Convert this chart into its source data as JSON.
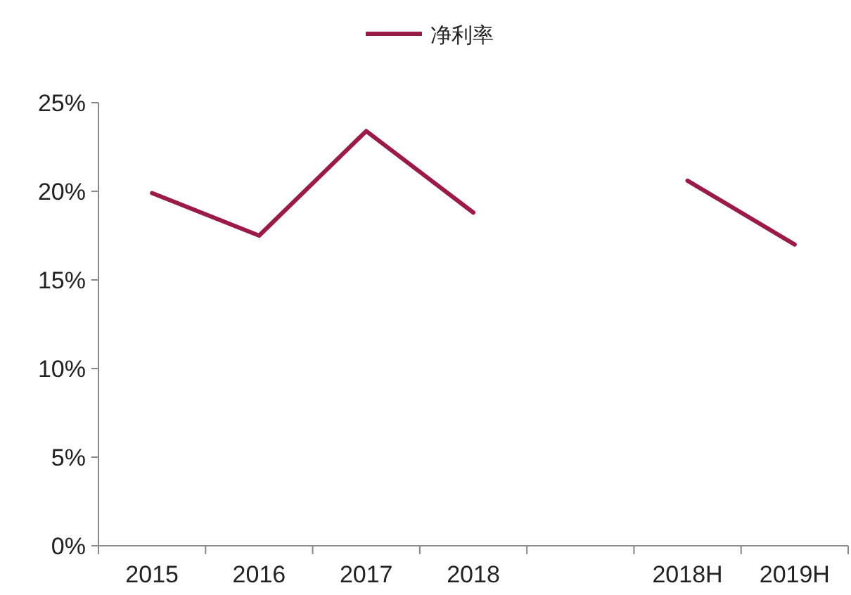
{
  "chart_data": {
    "type": "line",
    "categories": [
      "2015",
      "2016",
      "2017",
      "2018",
      null,
      "2018H",
      "2019H"
    ],
    "series": [
      {
        "name": "净利率",
        "color": "#9b1b48",
        "values": [
          19.9,
          17.5,
          23.4,
          18.8,
          null,
          20.6,
          17.0
        ]
      }
    ],
    "ylim": [
      0,
      25
    ],
    "yticks": [
      {
        "value": 0,
        "label": "0%"
      },
      {
        "value": 5,
        "label": "5%"
      },
      {
        "value": 10,
        "label": "10%"
      },
      {
        "value": 15,
        "label": "15%"
      },
      {
        "value": 20,
        "label": "20%"
      },
      {
        "value": 25,
        "label": "25%"
      }
    ],
    "legend": "top",
    "grid": false,
    "marker": "none",
    "line_style": "solid"
  }
}
